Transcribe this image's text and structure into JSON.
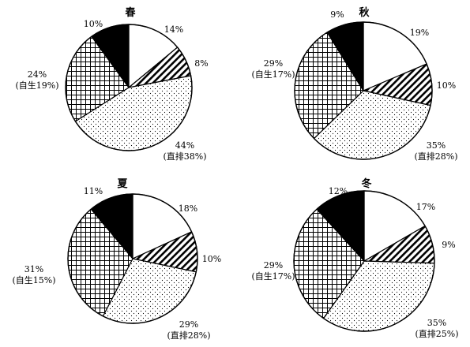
{
  "chart_data": [
    {
      "type": "pie",
      "title": "春",
      "slices": [
        {
          "value": 14,
          "label": "14%",
          "sublabel": "",
          "pattern": "blank"
        },
        {
          "value": 8,
          "label": "8%",
          "sublabel": "",
          "pattern": "hatch"
        },
        {
          "value": 44,
          "label": "44%",
          "sublabel": "(直排38%)",
          "pattern": "dots"
        },
        {
          "value": 24,
          "label": "24%",
          "sublabel": "(自生19%)",
          "pattern": "grid"
        },
        {
          "value": 10,
          "label": "10%",
          "sublabel": "",
          "pattern": "solid"
        }
      ]
    },
    {
      "type": "pie",
      "title": "秋",
      "slices": [
        {
          "value": 19,
          "label": "19%",
          "sublabel": "",
          "pattern": "blank"
        },
        {
          "value": 10,
          "label": "10%",
          "sublabel": "",
          "pattern": "hatch"
        },
        {
          "value": 35,
          "label": "35%",
          "sublabel": "(直排28%)",
          "pattern": "dots"
        },
        {
          "value": 29,
          "label": "29%",
          "sublabel": "(自生17%)",
          "pattern": "grid"
        },
        {
          "value": 9,
          "label": "9%",
          "sublabel": "",
          "pattern": "solid"
        }
      ]
    },
    {
      "type": "pie",
      "title": "夏",
      "slices": [
        {
          "value": 18,
          "label": "18%",
          "sublabel": "",
          "pattern": "blank"
        },
        {
          "value": 10,
          "label": "10%",
          "sublabel": "",
          "pattern": "hatch"
        },
        {
          "value": 29,
          "label": "29%",
          "sublabel": "(直排28%)",
          "pattern": "dots"
        },
        {
          "value": 31,
          "label": "31%",
          "sublabel": "(自生15%)",
          "pattern": "grid"
        },
        {
          "value": 11,
          "label": "11%",
          "sublabel": "",
          "pattern": "solid"
        }
      ]
    },
    {
      "type": "pie",
      "title": "冬",
      "slices": [
        {
          "value": 17,
          "label": "17%",
          "sublabel": "",
          "pattern": "blank"
        },
        {
          "value": 9,
          "label": "9%",
          "sublabel": "",
          "pattern": "hatch"
        },
        {
          "value": 35,
          "label": "35%",
          "sublabel": "(直排25%)",
          "pattern": "dots"
        },
        {
          "value": 29,
          "label": "29%",
          "sublabel": "(自生17%)",
          "pattern": "grid"
        },
        {
          "value": 12,
          "label": "12%",
          "sublabel": "",
          "pattern": "solid"
        }
      ]
    }
  ]
}
